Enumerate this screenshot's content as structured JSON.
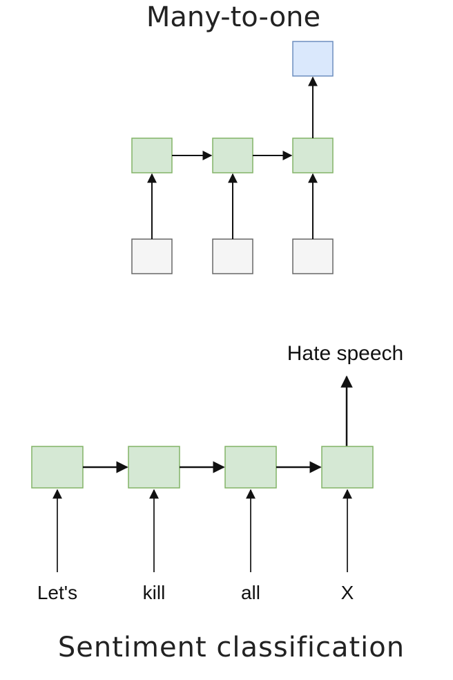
{
  "top_diagram": {
    "title": "Many-to-one",
    "steps": 3
  },
  "bottom_diagram": {
    "title": "Sentiment classification",
    "inputs": [
      "Let's",
      "kill",
      "all",
      "X"
    ],
    "output_label": "Hate speech"
  },
  "colors": {
    "hidden_fill": "#d5e8d4",
    "hidden_stroke": "#82b366",
    "output_fill": "#dae8fc",
    "output_stroke": "#6c8ebf",
    "input_fill": "#f5f5f5",
    "input_stroke": "#666666",
    "arrow": "#111111"
  }
}
